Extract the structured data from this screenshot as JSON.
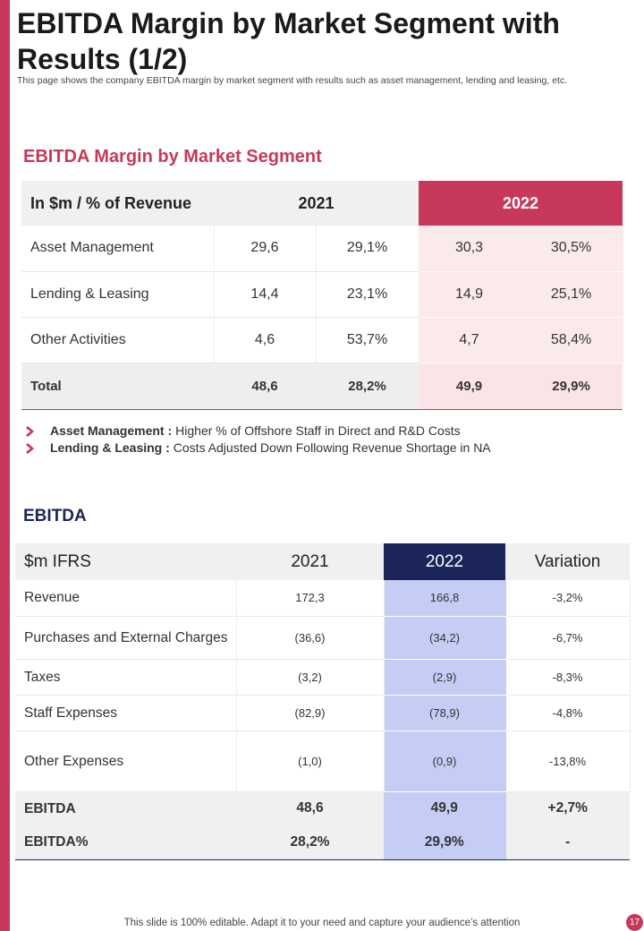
{
  "title": "EBITDA Margin by Market Segment with Results (1/2)",
  "subtitle": "This page shows the company EBITDA margin by market segment with results such as asset management, lending and leasing, etc.",
  "colors": {
    "accent": "#c8385a",
    "navy": "#1b2559",
    "pink_fill": "#fbeaec",
    "blue_fill": "#c5cdf4"
  },
  "segment_section": {
    "title": "EBITDA Margin by Market Segment",
    "header": {
      "label": "In $m / % of Revenue",
      "year1": "2021",
      "year2": "2022"
    },
    "rows": [
      {
        "name": "Asset Management",
        "v2021": "29,6",
        "p2021": "29,1%",
        "v2022": "30,3",
        "p2022": "30,5%"
      },
      {
        "name": "Lending & Leasing",
        "v2021": "14,4",
        "p2021": "23,1%",
        "v2022": "14,9",
        "p2022": "25,1%"
      },
      {
        "name": "Other Activities",
        "v2021": "4,6",
        "p2021": "53,7%",
        "v2022": "4,7",
        "p2022": "58,4%"
      }
    ],
    "total": {
      "name": "Total",
      "v2021": "48,6",
      "p2021": "28,2%",
      "v2022": "49,9",
      "p2022": "29,9%"
    },
    "notes": [
      {
        "label": "Asset Management :",
        "text": "Higher % of Offshore Staff in Direct and R&D Costs"
      },
      {
        "label": "Lending & Leasing :",
        "text": "Costs Adjusted Down Following Revenue Shortage in NA"
      }
    ]
  },
  "ebitda_section": {
    "title": "EBITDA",
    "header": {
      "label": "$m IFRS",
      "year1": "2021",
      "year2": "2022",
      "variation": "Variation"
    },
    "rows": [
      {
        "name": "Revenue",
        "v2021": "172,3",
        "v2022": "166,8",
        "var": "-3,2%"
      },
      {
        "name": "Purchases and External Charges",
        "v2021": "(36,6)",
        "v2022": "(34,2)",
        "var": "-6,7%"
      },
      {
        "name": "Taxes",
        "v2021": "(3,2)",
        "v2022": "(2,9)",
        "var": "-8,3%"
      },
      {
        "name": "Staff Expenses",
        "v2021": "(82,9)",
        "v2022": "(78,9)",
        "var": "-4,8%"
      },
      {
        "name": "Other Expenses",
        "v2021": "(1,0)",
        "v2022": "(0,9)",
        "var": "-13,8%"
      }
    ],
    "summary": [
      {
        "name": "EBITDA",
        "v2021": "48,6",
        "v2022": "49,9",
        "var": "+2,7%"
      },
      {
        "name": "EBITDA%",
        "v2021": "28,2%",
        "v2022": "29,9%",
        "var": "-"
      }
    ]
  },
  "footer": "This slide is 100% editable. Adapt it to your need and capture your audience’s attention",
  "page_number": "17"
}
